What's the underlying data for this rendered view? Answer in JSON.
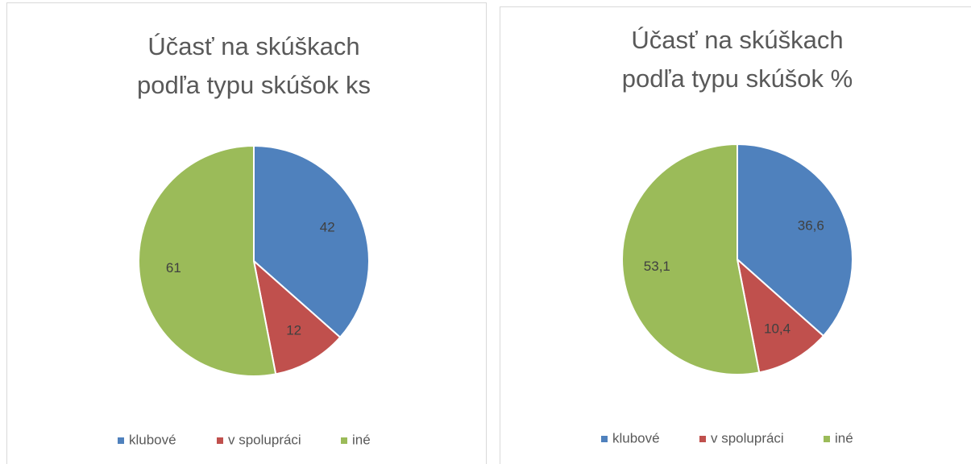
{
  "chart_data": [
    {
      "type": "pie",
      "title": [
        "Účasť na skúškach",
        "podľa typu skúšok ks"
      ],
      "categories": [
        "klubové",
        "v spolupráci",
        "iné"
      ],
      "values": [
        42,
        12,
        61
      ],
      "colors": [
        "#4f81bd",
        "#c0504d",
        "#9bbb59"
      ],
      "legend": "bottom"
    },
    {
      "type": "pie",
      "title": [
        "Účasť na skúškach",
        "podľa typu skúšok %"
      ],
      "categories": [
        "klubové",
        "v spolupráci",
        "iné"
      ],
      "values": [
        36.6,
        10.4,
        53.1
      ],
      "value_labels": [
        "36,6",
        "10,4",
        "53,1"
      ],
      "colors": [
        "#4f81bd",
        "#c0504d",
        "#9bbb59"
      ],
      "legend": "bottom"
    }
  ]
}
